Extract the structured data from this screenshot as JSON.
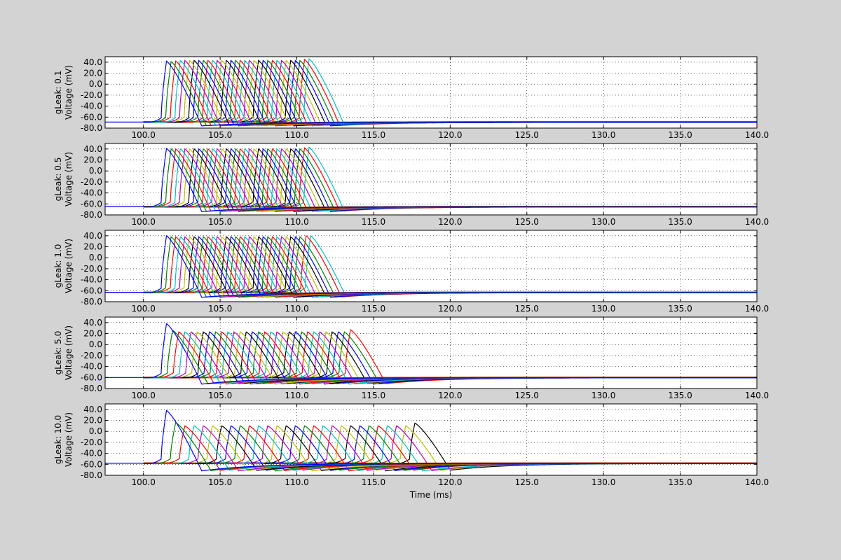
{
  "figure": {
    "background": "#d3d3d3",
    "axes_background": "#ffffff"
  },
  "chart_data": {
    "type": "line",
    "xlabel": "Time (ms)",
    "ylabel": "Voltage (mV)",
    "xlim": [
      97.5,
      140.0
    ],
    "ylim": [
      -80.0,
      50.0
    ],
    "xticks": [
      "100.0",
      "105.0",
      "110.0",
      "115.0",
      "120.0",
      "125.0",
      "130.0",
      "135.0",
      "140.0"
    ],
    "yticks": [
      "40.0",
      "20.0",
      "0.0",
      "-20.0",
      "-40.0",
      "-60.0",
      "-80.0"
    ],
    "grid": true,
    "color_cycle": [
      "#0000ff",
      "#008000",
      "#ff0000",
      "#00bfbf",
      "#bf00bf",
      "#bfbf00",
      "#000000"
    ],
    "panels": [
      {
        "label": "gLeak: 0.1",
        "rest": -69,
        "peak": 43,
        "ahp": -76,
        "spike_times": [
          101.5,
          101.8,
          102.1,
          102.4,
          102.7,
          103.0,
          103.3,
          103.6,
          103.9,
          104.2,
          104.5,
          104.8,
          105.1,
          105.4,
          105.7,
          106.0,
          106.3,
          106.6,
          106.9,
          107.2,
          107.5,
          107.8,
          108.1,
          108.4,
          108.7,
          109.0,
          109.3,
          109.6,
          109.9,
          110.2,
          110.5,
          110.8
        ],
        "spike_peaks": [
          42,
          41,
          42,
          43,
          43,
          43,
          43,
          43,
          43,
          43,
          43,
          43,
          43,
          43,
          43,
          43,
          43,
          43,
          43,
          43,
          43,
          43,
          43,
          43,
          43,
          43,
          43,
          43,
          43,
          43,
          45,
          46
        ]
      },
      {
        "label": "gLeak: 0.5",
        "rest": -65,
        "peak": 40,
        "ahp": -74,
        "spike_times": [
          101.5,
          101.8,
          102.1,
          102.4,
          102.7,
          103.0,
          103.3,
          103.6,
          103.9,
          104.2,
          104.5,
          104.8,
          105.1,
          105.4,
          105.7,
          106.0,
          106.3,
          106.6,
          106.9,
          107.2,
          107.5,
          107.8,
          108.1,
          108.4,
          108.7,
          109.0,
          109.3,
          109.6,
          109.9,
          110.2,
          110.5,
          110.8
        ],
        "spike_peaks": [
          41,
          40,
          40,
          40,
          40,
          40,
          40,
          40,
          40,
          40,
          40,
          40,
          40,
          40,
          40,
          40,
          40,
          40,
          40,
          40,
          40,
          40,
          40,
          40,
          40,
          40,
          40,
          40,
          40,
          40,
          42,
          43
        ]
      },
      {
        "label": "gLeak: 1.0",
        "rest": -63,
        "peak": 38,
        "ahp": -72,
        "spike_times": [
          101.5,
          101.8,
          102.1,
          102.4,
          102.7,
          103.0,
          103.3,
          103.6,
          103.9,
          104.2,
          104.5,
          104.8,
          105.1,
          105.4,
          105.7,
          106.0,
          106.3,
          106.6,
          106.9,
          107.2,
          107.5,
          107.8,
          108.1,
          108.4,
          108.7,
          109.0,
          109.3,
          109.6,
          109.9,
          110.2,
          110.6,
          110.9
        ],
        "spike_peaks": [
          40,
          38,
          38,
          38,
          38,
          38,
          38,
          38,
          38,
          38,
          38,
          38,
          38,
          38,
          38,
          38,
          38,
          38,
          38,
          38,
          38,
          38,
          38,
          38,
          38,
          38,
          38,
          38,
          38,
          38,
          40,
          40
        ]
      },
      {
        "label": "gLeak: 5.0",
        "rest": -60,
        "peak": 23,
        "ahp": -72,
        "spike_times": [
          101.5,
          101.9,
          102.3,
          102.7,
          103.1,
          103.5,
          103.9,
          104.3,
          104.7,
          105.1,
          105.5,
          105.9,
          106.3,
          106.7,
          107.1,
          107.5,
          107.9,
          108.3,
          108.7,
          109.1,
          109.5,
          109.9,
          110.3,
          110.7,
          111.1,
          111.5,
          111.9,
          112.3,
          112.7,
          113.1,
          113.5
        ],
        "spike_peaks": [
          38,
          26,
          23,
          23,
          23,
          23,
          23,
          23,
          23,
          23,
          23,
          23,
          23,
          23,
          23,
          23,
          23,
          23,
          23,
          23,
          23,
          23,
          23,
          23,
          23,
          23,
          23,
          23,
          23,
          23,
          27
        ]
      },
      {
        "label": "gLeak: 10.0",
        "rest": -58,
        "peak": 10,
        "ahp": -72,
        "spike_times": [
          101.5,
          102.1,
          102.7,
          103.3,
          103.9,
          104.5,
          105.1,
          105.7,
          106.3,
          106.9,
          107.5,
          108.1,
          108.7,
          109.3,
          109.9,
          110.5,
          111.1,
          111.7,
          112.3,
          112.9,
          113.5,
          114.1,
          114.7,
          115.3,
          115.9,
          116.5,
          117.1,
          117.7
        ],
        "spike_peaks": [
          38,
          16,
          10,
          10,
          10,
          10,
          10,
          10,
          10,
          10,
          10,
          10,
          10,
          10,
          10,
          10,
          10,
          10,
          10,
          10,
          10,
          10,
          10,
          10,
          10,
          10,
          10,
          15
        ]
      }
    ]
  }
}
